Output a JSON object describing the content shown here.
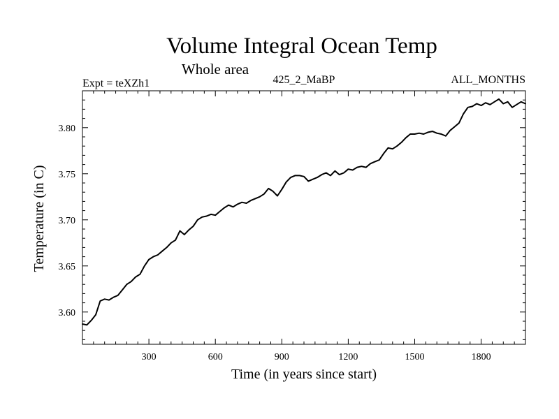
{
  "chart_data": {
    "type": "line",
    "title": "Volume Integral Ocean Temp",
    "subtitle": "Whole area",
    "header_left": "Expt = teXZh1",
    "header_center": "425_2_MaBP",
    "header_right": "ALL_MONTHS",
    "xlabel": "Time (in years since start)",
    "ylabel": "Temperature (in C)",
    "xlim": [
      0,
      2000
    ],
    "ylim": [
      3.565,
      3.84
    ],
    "xticks": [
      300,
      600,
      900,
      1200,
      1500,
      1800
    ],
    "xtick_labels": [
      "300",
      "600",
      "900",
      "1200",
      "1500",
      "1800"
    ],
    "yticks": [
      3.6,
      3.65,
      3.7,
      3.75,
      3.8
    ],
    "ytick_labels": [
      "3.60",
      "3.65",
      "3.70",
      "3.75",
      "3.80"
    ],
    "grid": false,
    "series": [
      {
        "name": "Volume Integral Ocean Temp",
        "color": "#000000",
        "x": [
          0,
          20,
          40,
          60,
          80,
          100,
          120,
          140,
          160,
          180,
          200,
          220,
          240,
          260,
          280,
          300,
          320,
          340,
          360,
          380,
          400,
          420,
          440,
          460,
          480,
          500,
          520,
          540,
          560,
          580,
          600,
          620,
          640,
          660,
          680,
          700,
          720,
          740,
          760,
          780,
          800,
          820,
          840,
          860,
          880,
          900,
          920,
          940,
          960,
          980,
          1000,
          1020,
          1040,
          1060,
          1080,
          1100,
          1120,
          1140,
          1160,
          1180,
          1200,
          1220,
          1240,
          1260,
          1280,
          1300,
          1320,
          1340,
          1360,
          1380,
          1400,
          1420,
          1440,
          1460,
          1480,
          1500,
          1520,
          1540,
          1560,
          1580,
          1600,
          1620,
          1640,
          1660,
          1680,
          1700,
          1720,
          1740,
          1760,
          1780,
          1800,
          1820,
          1840,
          1860,
          1880,
          1900,
          1920,
          1940,
          1960,
          1980,
          2000
        ],
        "values": [
          3.587,
          3.586,
          3.591,
          3.597,
          3.612,
          3.614,
          3.613,
          3.616,
          3.618,
          3.624,
          3.63,
          3.633,
          3.638,
          3.641,
          3.65,
          3.657,
          3.66,
          3.662,
          3.666,
          3.67,
          3.675,
          3.678,
          3.688,
          3.684,
          3.689,
          3.693,
          3.7,
          3.703,
          3.704,
          3.706,
          3.705,
          3.709,
          3.713,
          3.716,
          3.714,
          3.717,
          3.719,
          3.718,
          3.721,
          3.723,
          3.725,
          3.728,
          3.734,
          3.731,
          3.726,
          3.733,
          3.741,
          3.746,
          3.748,
          3.748,
          3.747,
          3.742,
          3.744,
          3.746,
          3.749,
          3.751,
          3.748,
          3.753,
          3.749,
          3.751,
          3.755,
          3.754,
          3.757,
          3.758,
          3.757,
          3.761,
          3.763,
          3.765,
          3.772,
          3.778,
          3.777,
          3.78,
          3.784,
          3.789,
          3.793,
          3.793,
          3.794,
          3.793,
          3.795,
          3.796,
          3.794,
          3.793,
          3.791,
          3.797,
          3.801,
          3.805,
          3.815,
          3.822,
          3.823,
          3.826,
          3.824,
          3.827,
          3.825,
          3.828,
          3.831,
          3.826,
          3.828,
          3.822,
          3.825,
          3.828,
          3.826
        ]
      }
    ]
  }
}
